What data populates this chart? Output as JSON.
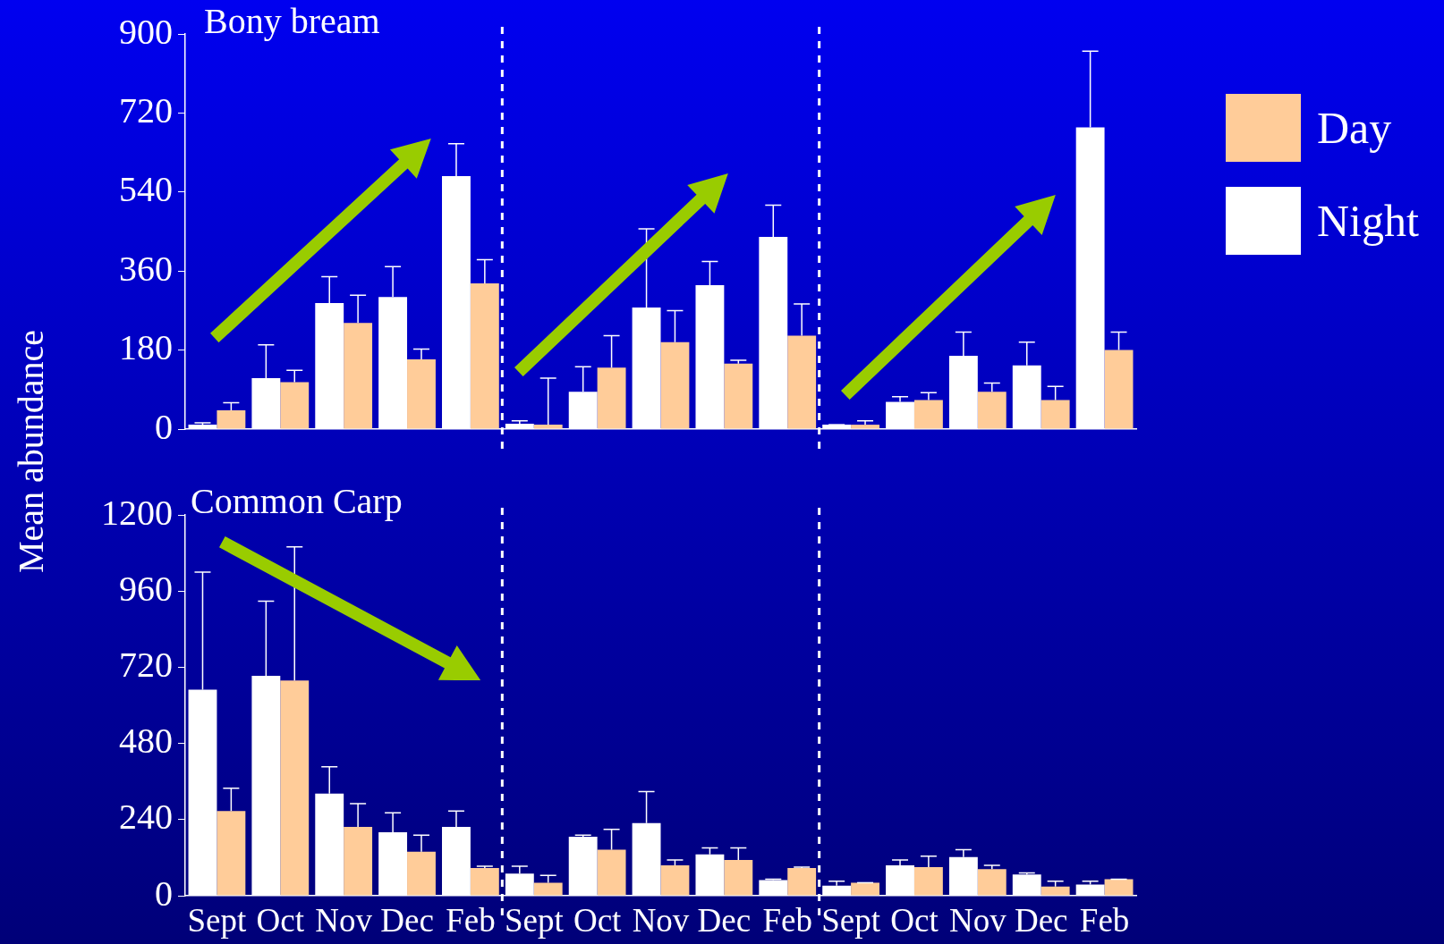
{
  "chart_data": [
    {
      "type": "bar",
      "title": "Bony bream",
      "ylabel": "Mean abundance",
      "categories": [
        null,
        null,
        null,
        null,
        null,
        null,
        null,
        null,
        null,
        null,
        null,
        null,
        null,
        null,
        null
      ],
      "series": [
        {
          "name": "Night",
          "color": "#ffffff",
          "values": [
            10,
            116,
            287,
            301,
            576,
            12,
            85,
            277,
            328,
            438,
            10,
            62,
            167,
            145,
            687
          ],
          "errors": [
            [
              10,
              14
            ],
            [
              116,
              192
            ],
            [
              287,
              347
            ],
            [
              301,
              370
            ],
            [
              576,
              650
            ],
            [
              12,
              19
            ],
            [
              85,
              142
            ],
            [
              277,
              456
            ],
            [
              328,
              382
            ],
            [
              438,
              510
            ],
            [
              10,
              10
            ],
            [
              62,
              74
            ],
            [
              167,
              221
            ],
            [
              145,
              198
            ],
            [
              687,
              861
            ]
          ]
        },
        {
          "name": "Day",
          "color": "#ffcc99",
          "values": [
            43,
            107,
            242,
            159,
            332,
            10,
            140,
            198,
            149,
            213,
            10,
            66,
            85,
            66,
            180
          ],
          "errors": [
            [
              43,
              60
            ],
            [
              107,
              134
            ],
            [
              242,
              305
            ],
            [
              159,
              182
            ],
            [
              332,
              386
            ],
            [
              10,
              116
            ],
            [
              140,
              213
            ],
            [
              198,
              270
            ],
            [
              149,
              157
            ],
            [
              213,
              285
            ],
            [
              10,
              19
            ],
            [
              66,
              83
            ],
            [
              85,
              105
            ],
            [
              66,
              97
            ],
            [
              180,
              221
            ]
          ]
        }
      ],
      "ylim": [
        0,
        900
      ],
      "yticks": [
        0,
        180,
        360,
        540,
        720,
        900
      ],
      "grid": false,
      "legend": "right",
      "tick_labels": "y"
    },
    {
      "type": "bar",
      "title": "Common Carp",
      "categories": [
        "Sept",
        "Oct",
        "Nov",
        "Dec",
        "Feb",
        "Sept",
        "Oct",
        "Nov",
        "Dec",
        "Feb",
        "Sept",
        "Oct",
        "Nov",
        "Dec",
        "Feb"
      ],
      "series": [
        {
          "color": "#ffffff",
          "values": [
            649,
            693,
            322,
            200,
            217,
            70,
            186,
            229,
            130,
            49,
            32,
            96,
            122,
            67,
            35
          ],
          "errors": [
            [
              649,
              1020
            ],
            [
              693,
              928
            ],
            [
              322,
              406
            ],
            [
              200,
              261
            ],
            [
              217,
              267
            ],
            [
              70,
              93
            ],
            [
              186,
              191
            ],
            [
              229,
              328
            ],
            [
              130,
              151
            ],
            [
              49,
              52
            ],
            [
              32,
              46
            ],
            [
              96,
              113
            ],
            [
              122,
              145
            ],
            [
              67,
              72
            ],
            [
              35,
              46
            ]
          ]
        },
        {
          "color": "#ffcc99",
          "values": [
            267,
            678,
            217,
            139,
            87,
            41,
            145,
            96,
            113,
            87,
            41,
            90,
            84,
            29,
            52
          ],
          "errors": [
            [
              267,
              339
            ],
            [
              678,
              1099
            ],
            [
              217,
              290
            ],
            [
              139,
              191
            ],
            [
              87,
              93
            ],
            [
              41,
              64
            ],
            [
              145,
              209
            ],
            [
              96,
              113
            ],
            [
              113,
              151
            ],
            [
              87,
              90
            ],
            [
              41,
              41
            ],
            [
              90,
              125
            ],
            [
              84,
              96
            ],
            [
              29,
              46
            ],
            [
              52,
              52
            ]
          ]
        }
      ],
      "ylim": [
        0,
        1200
      ],
      "yticks": [
        0,
        240,
        480,
        720,
        960,
        1200
      ],
      "grid": false,
      "legend": false
    }
  ]
}
